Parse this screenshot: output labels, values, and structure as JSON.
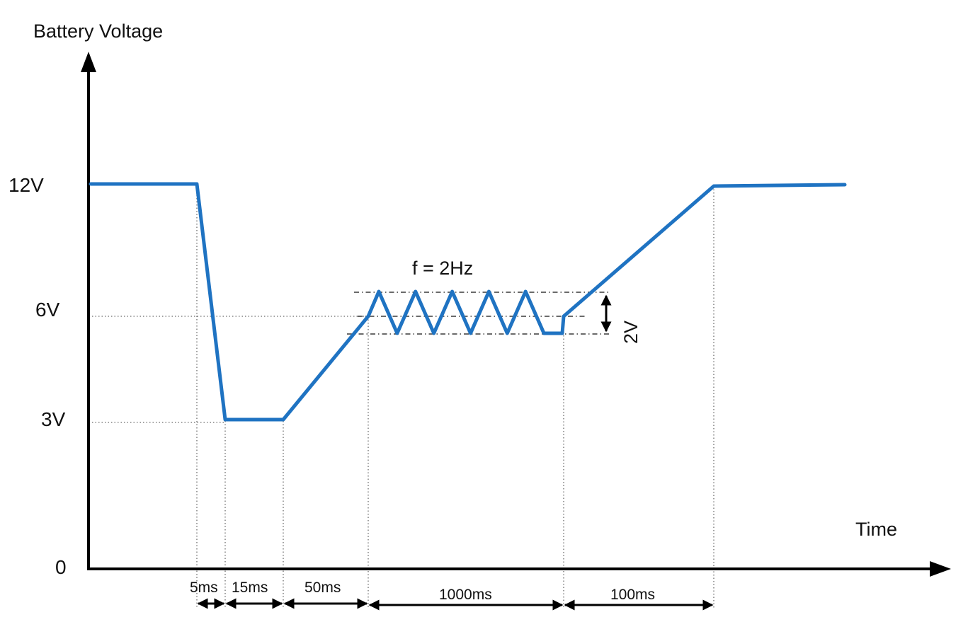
{
  "colors": {
    "waveform": "#1f73c2",
    "axis": "#000000"
  },
  "diagram": {
    "y_axis_title": "Battery Voltage",
    "x_axis_title": "Time",
    "y_levels": [
      {
        "label": "12V",
        "volts": 12
      },
      {
        "label": "6V",
        "volts": 6
      },
      {
        "label": "3V",
        "volts": 3
      },
      {
        "label": "0",
        "volts": 0
      }
    ],
    "segments": [
      {
        "label": "5ms",
        "duration_ms": 5
      },
      {
        "label": "15ms",
        "duration_ms": 15
      },
      {
        "label": "50ms",
        "duration_ms": 50
      },
      {
        "label": "1000ms",
        "duration_ms": 1000
      },
      {
        "label": "100ms",
        "duration_ms": 100
      }
    ],
    "oscillation": {
      "frequency_label": "f = 2Hz",
      "amplitude_label": "2V",
      "peak_to_peak_volts": 2,
      "cycles_drawn": 5
    }
  }
}
